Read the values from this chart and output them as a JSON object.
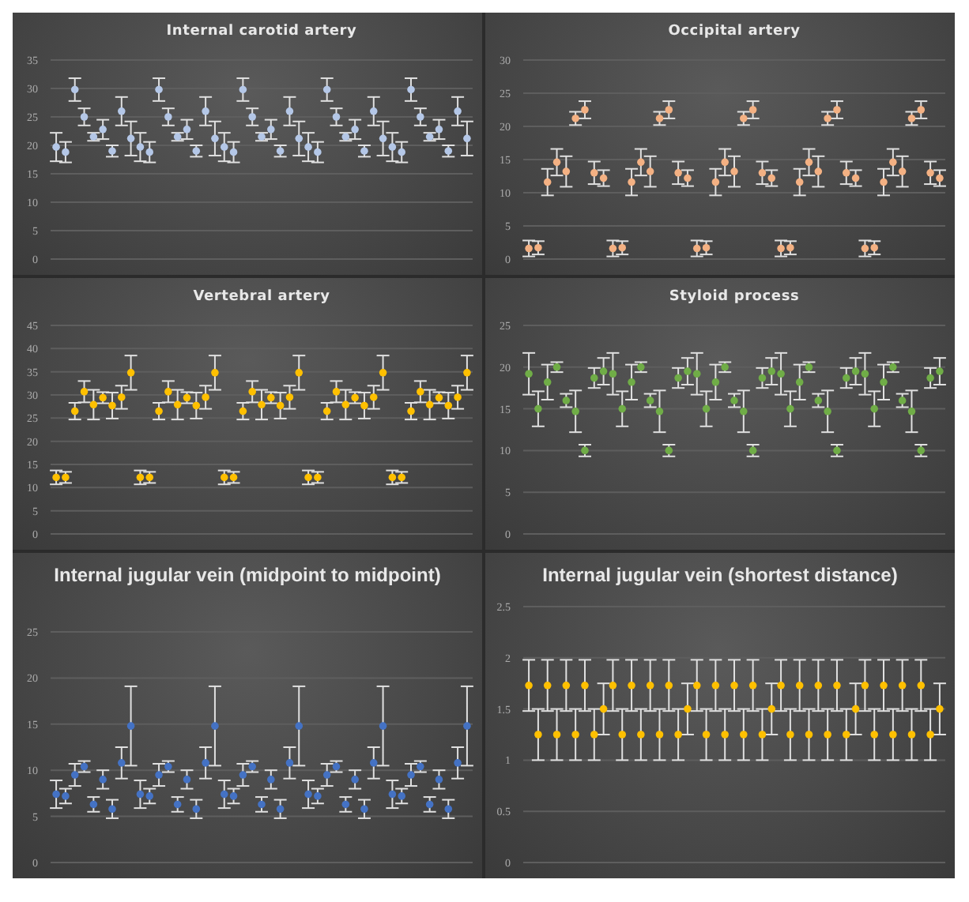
{
  "chart_data": [
    {
      "type": "scatter",
      "title": "Internal carotid artery",
      "categories": [
        null,
        null,
        null,
        null,
        null,
        null,
        null,
        null,
        null,
        null,
        null,
        null,
        null,
        null,
        null,
        null,
        null,
        null,
        null,
        null,
        null,
        null,
        null,
        null,
        null,
        null,
        null,
        null,
        null,
        null,
        null,
        null,
        null,
        null,
        null,
        null,
        null,
        null,
        null,
        null,
        null,
        null,
        null,
        null,
        null
      ],
      "values": [
        19.7,
        18.8,
        29.8,
        25,
        21.5,
        22.8,
        19,
        26,
        21.2,
        19.7,
        18.8,
        29.8,
        25,
        21.5,
        22.8,
        19,
        26,
        21.2,
        19.7,
        18.8,
        29.8,
        25,
        21.5,
        22.8,
        19,
        26,
        21.2,
        19.7,
        18.8,
        29.8,
        25,
        21.5,
        22.8,
        19,
        26,
        21.2,
        19.7,
        18.8,
        29.8,
        25,
        21.5,
        22.8,
        19,
        26,
        21.2
      ],
      "errors": [
        2.5,
        1.8,
        2,
        1.5,
        0.7,
        1.7,
        1,
        2.5,
        3,
        2.5,
        1.8,
        2,
        1.5,
        0.7,
        1.7,
        1,
        2.5,
        3,
        2.5,
        1.8,
        2,
        1.5,
        0.7,
        1.7,
        1,
        2.5,
        3,
        2.5,
        1.8,
        2,
        1.5,
        0.7,
        1.7,
        1,
        2.5,
        3,
        2.5,
        1.8,
        2,
        1.5,
        0.7,
        1.7,
        1,
        2.5,
        3
      ],
      "color": "#b4c7e7",
      "ylim": [
        0,
        35
      ],
      "yticks": [
        0,
        5,
        10,
        15,
        20,
        25,
        30,
        35
      ],
      "grid": "y",
      "tick_labels": "y",
      "marker": "circle"
    },
    {
      "type": "scatter",
      "title": "Occipital artery",
      "categories": [
        null,
        null,
        null,
        null,
        null,
        null,
        null,
        null,
        null,
        null,
        null,
        null,
        null,
        null,
        null,
        null,
        null,
        null,
        null,
        null,
        null,
        null,
        null,
        null,
        null,
        null,
        null,
        null,
        null,
        null,
        null,
        null,
        null,
        null,
        null,
        null,
        null,
        null,
        null,
        null,
        null,
        null,
        null,
        null,
        null
      ],
      "values": [
        1.6,
        1.7,
        11.6,
        14.6,
        13.2,
        21.2,
        22.5,
        13,
        12.2,
        1.6,
        1.7,
        11.6,
        14.6,
        13.2,
        21.2,
        22.5,
        13,
        12.2,
        1.6,
        1.7,
        11.6,
        14.6,
        13.2,
        21.2,
        22.5,
        13,
        12.2,
        1.6,
        1.7,
        11.6,
        14.6,
        13.2,
        21.2,
        22.5,
        13,
        12.2,
        1.6,
        1.7,
        11.6,
        14.6,
        13.2,
        21.2,
        22.5,
        13,
        12.2
      ],
      "errors": [
        1.2,
        1,
        2,
        2,
        2.3,
        1,
        1.3,
        1.7,
        1.2,
        1.2,
        1,
        2,
        2,
        2.3,
        1,
        1.3,
        1.7,
        1.2,
        1.2,
        1,
        2,
        2,
        2.3,
        1,
        1.3,
        1.7,
        1.2,
        1.2,
        1,
        2,
        2,
        2.3,
        1,
        1.3,
        1.7,
        1.2,
        1.2,
        1,
        2,
        2,
        2.3,
        1,
        1.3,
        1.7,
        1.2
      ],
      "color": "#f4b183",
      "ylim": [
        0,
        30
      ],
      "yticks": [
        0,
        5,
        10,
        15,
        20,
        25,
        30
      ],
      "grid": "y",
      "tick_labels": "y",
      "marker": "circle"
    },
    {
      "type": "scatter",
      "title": "Vertebral artery",
      "categories": [
        null,
        null,
        null,
        null,
        null,
        null,
        null,
        null,
        null,
        null,
        null,
        null,
        null,
        null,
        null,
        null,
        null,
        null,
        null,
        null,
        null,
        null,
        null,
        null,
        null,
        null,
        null,
        null,
        null,
        null,
        null,
        null,
        null,
        null,
        null,
        null,
        null,
        null,
        null,
        null,
        null,
        null,
        null,
        null,
        null
      ],
      "values": [
        12.2,
        12.2,
        26.5,
        30.7,
        27.9,
        29.4,
        27.7,
        29.5,
        34.8,
        12.2,
        12.2,
        26.5,
        30.7,
        27.9,
        29.4,
        27.7,
        29.5,
        34.8,
        12.2,
        12.2,
        26.5,
        30.7,
        27.9,
        29.4,
        27.7,
        29.5,
        34.8,
        12.2,
        12.2,
        26.5,
        30.7,
        27.9,
        29.4,
        27.7,
        29.5,
        34.8,
        12.2,
        12.2,
        26.5,
        30.7,
        27.9,
        29.4,
        27.7,
        29.5,
        34.8
      ],
      "errors": [
        1.5,
        1.2,
        1.8,
        2.3,
        3.2,
        1.2,
        2.8,
        2.5,
        3.7,
        1.5,
        1.2,
        1.8,
        2.3,
        3.2,
        1.2,
        2.8,
        2.5,
        3.7,
        1.5,
        1.2,
        1.8,
        2.3,
        3.2,
        1.2,
        2.8,
        2.5,
        3.7,
        1.5,
        1.2,
        1.8,
        2.3,
        3.2,
        1.2,
        2.8,
        2.5,
        3.7,
        1.5,
        1.2,
        1.8,
        2.3,
        3.2,
        1.2,
        2.8,
        2.5,
        3.7
      ],
      "color": "#ffc000",
      "ylim": [
        0,
        45
      ],
      "yticks": [
        0,
        5,
        10,
        15,
        20,
        25,
        30,
        35,
        40,
        45
      ],
      "grid": "y",
      "tick_labels": "y",
      "marker": "circle"
    },
    {
      "type": "scatter",
      "title": "Styloid process",
      "categories": [
        null,
        null,
        null,
        null,
        null,
        null,
        null,
        null,
        null,
        null,
        null,
        null,
        null,
        null,
        null,
        null,
        null,
        null,
        null,
        null,
        null,
        null,
        null,
        null,
        null,
        null,
        null,
        null,
        null,
        null,
        null,
        null,
        null,
        null,
        null,
        null,
        null,
        null,
        null,
        null,
        null,
        null,
        null,
        null,
        null
      ],
      "values": [
        19.2,
        15,
        18.2,
        20,
        16,
        14.7,
        10,
        18.7,
        19.5,
        19.2,
        15,
        18.2,
        20,
        16,
        14.7,
        10,
        18.7,
        19.5,
        19.2,
        15,
        18.2,
        20,
        16,
        14.7,
        10,
        18.7,
        19.5,
        19.2,
        15,
        18.2,
        20,
        16,
        14.7,
        10,
        18.7,
        19.5,
        19.2,
        15,
        18.2,
        20,
        16,
        14.7,
        10,
        18.7,
        19.5
      ],
      "errors": [
        2.5,
        2.1,
        2.1,
        0.6,
        0.8,
        2.5,
        0.7,
        1.2,
        1.6,
        2.5,
        2.1,
        2.1,
        0.6,
        0.8,
        2.5,
        0.7,
        1.2,
        1.6,
        2.5,
        2.1,
        2.1,
        0.6,
        0.8,
        2.5,
        0.7,
        1.2,
        1.6,
        2.5,
        2.1,
        2.1,
        0.6,
        0.8,
        2.5,
        0.7,
        1.2,
        1.6,
        2.5,
        2.1,
        2.1,
        0.6,
        0.8,
        2.5,
        0.7,
        1.2,
        1.6
      ],
      "color": "#70ad47",
      "ylim": [
        0,
        25
      ],
      "yticks": [
        0,
        5,
        10,
        15,
        20,
        25
      ],
      "grid": "y",
      "tick_labels": "y",
      "marker": "circle"
    },
    {
      "type": "scatter",
      "title": "Internal jugular vein (midpoint to midpoint)",
      "categories": [
        null,
        null,
        null,
        null,
        null,
        null,
        null,
        null,
        null,
        null,
        null,
        null,
        null,
        null,
        null,
        null,
        null,
        null,
        null,
        null,
        null,
        null,
        null,
        null,
        null,
        null,
        null,
        null,
        null,
        null,
        null,
        null,
        null,
        null,
        null,
        null,
        null,
        null,
        null,
        null,
        null,
        null,
        null,
        null,
        null
      ],
      "values": [
        7.4,
        7.2,
        9.5,
        10.4,
        6.3,
        9,
        5.8,
        10.8,
        14.8,
        7.4,
        7.2,
        9.5,
        10.4,
        6.3,
        9,
        5.8,
        10.8,
        14.8,
        7.4,
        7.2,
        9.5,
        10.4,
        6.3,
        9,
        5.8,
        10.8,
        14.8,
        7.4,
        7.2,
        9.5,
        10.4,
        6.3,
        9,
        5.8,
        10.8,
        14.8,
        7.4,
        7.2,
        9.5,
        10.4,
        6.3,
        9,
        5.8,
        10.8,
        14.8
      ],
      "errors": [
        1.5,
        0.8,
        1.2,
        0.6,
        0.8,
        1,
        1,
        1.7,
        4.3,
        1.5,
        0.8,
        1.2,
        0.6,
        0.8,
        1,
        1,
        1.7,
        4.3,
        1.5,
        0.8,
        1.2,
        0.6,
        0.8,
        1,
        1,
        1.7,
        4.3,
        1.5,
        0.8,
        1.2,
        0.6,
        0.8,
        1,
        1,
        1.7,
        4.3,
        1.5,
        0.8,
        1.2,
        0.6,
        0.8,
        1,
        1,
        1.7,
        4.3
      ],
      "color": "#4472c4",
      "ylim": [
        0,
        25
      ],
      "yticks": [
        0,
        5,
        10,
        15,
        20,
        25
      ],
      "grid": "y",
      "tick_labels": "y",
      "marker": "circle"
    },
    {
      "type": "scatter",
      "title": "Internal jugular vein (shortest distance)",
      "categories": [
        null,
        null,
        null,
        null,
        null,
        null,
        null,
        null,
        null,
        null,
        null,
        null,
        null,
        null,
        null,
        null,
        null,
        null,
        null,
        null,
        null,
        null,
        null,
        null,
        null,
        null,
        null,
        null,
        null,
        null,
        null,
        null,
        null,
        null,
        null,
        null,
        null,
        null,
        null,
        null,
        null,
        null,
        null,
        null,
        null
      ],
      "values": [
        1.73,
        1.25,
        1.73,
        1.25,
        1.73,
        1.25,
        1.73,
        1.25,
        1.5,
        1.73,
        1.25,
        1.73,
        1.25,
        1.73,
        1.25,
        1.73,
        1.25,
        1.5,
        1.73,
        1.25,
        1.73,
        1.25,
        1.73,
        1.25,
        1.73,
        1.25,
        1.5,
        1.73,
        1.25,
        1.73,
        1.25,
        1.73,
        1.25,
        1.73,
        1.25,
        1.5,
        1.73,
        1.25,
        1.73,
        1.25,
        1.73,
        1.25,
        1.73,
        1.25,
        1.5
      ],
      "errors": [
        0.25,
        0.25,
        0.25,
        0.25,
        0.25,
        0.25,
        0.25,
        0.25,
        0.25,
        0.25,
        0.25,
        0.25,
        0.25,
        0.25,
        0.25,
        0.25,
        0.25,
        0.25,
        0.25,
        0.25,
        0.25,
        0.25,
        0.25,
        0.25,
        0.25,
        0.25,
        0.25,
        0.25,
        0.25,
        0.25,
        0.25,
        0.25,
        0.25,
        0.25,
        0.25,
        0.25,
        0.25,
        0.25,
        0.25,
        0.25,
        0.25,
        0.25,
        0.25,
        0.25,
        0.25
      ],
      "color": "#ffc000",
      "ylim": [
        0,
        2.5
      ],
      "yticks": [
        0,
        0.5,
        1,
        1.5,
        2,
        2.5
      ],
      "grid": "y",
      "tick_labels": "y",
      "marker": "circle"
    }
  ]
}
